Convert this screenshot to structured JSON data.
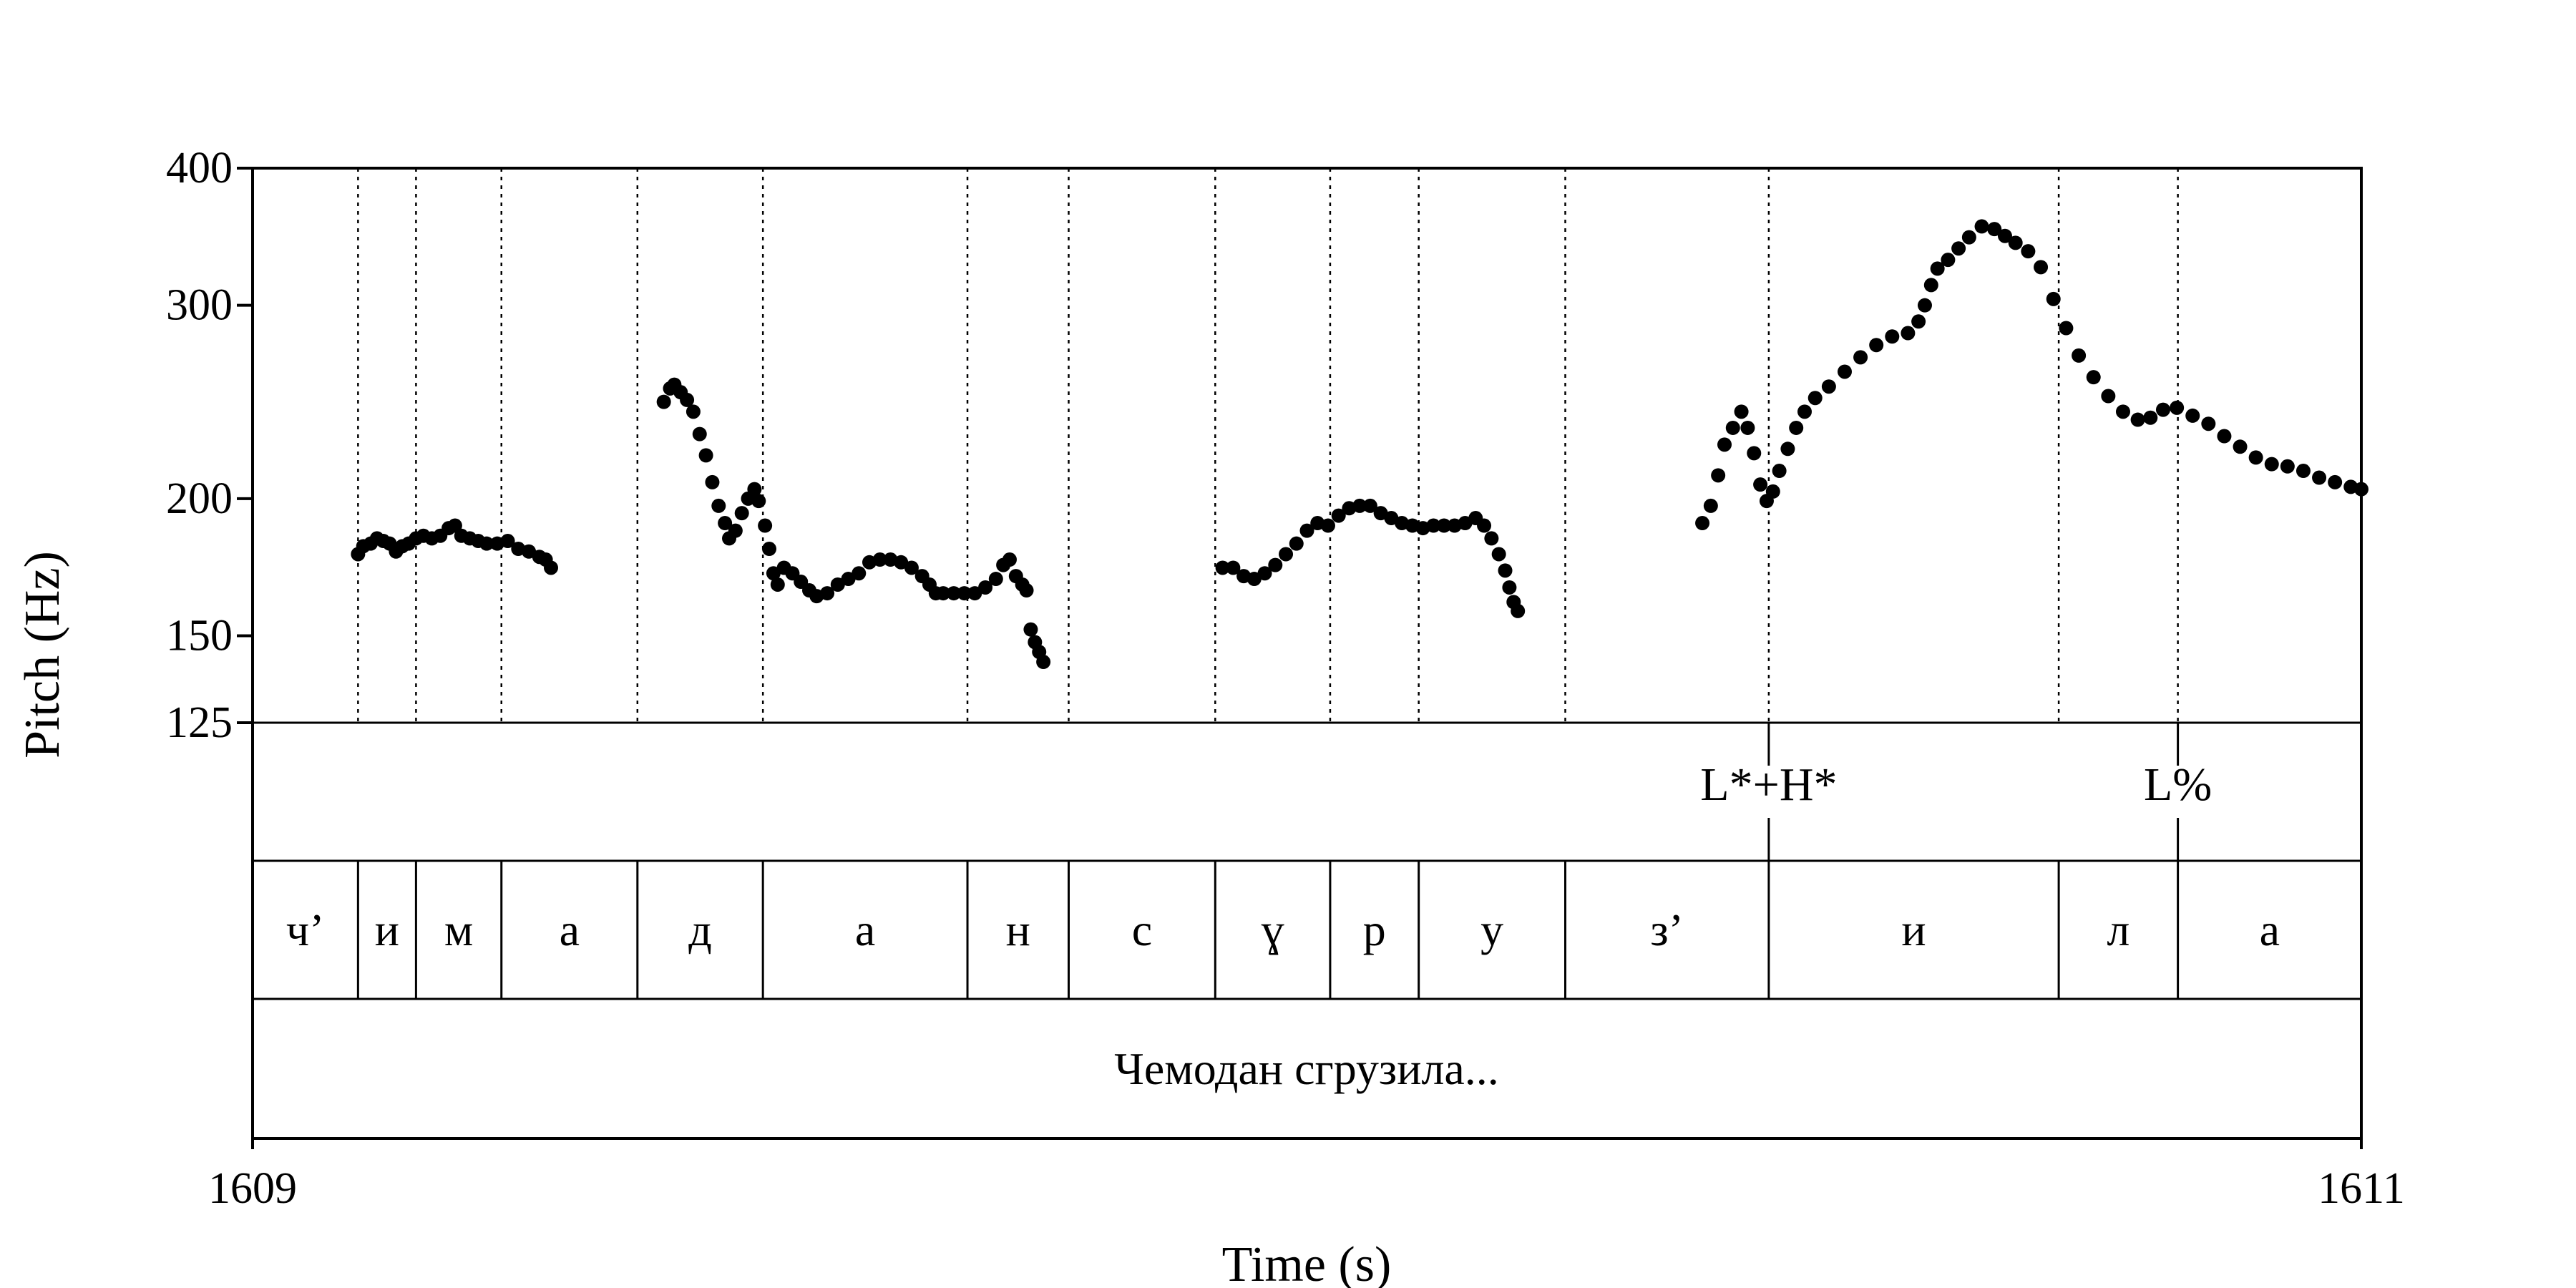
{
  "chart_data": {
    "type": "scatter",
    "xlabel": "Time (s)",
    "ylabel": "Pitch (Hz)",
    "xlim": [
      1609,
      1611
    ],
    "ylim": [
      125,
      400
    ],
    "yscale": "log",
    "xticks": [
      "1609",
      "1611"
    ],
    "yticks": [
      {
        "value": 125,
        "label": "125"
      },
      {
        "value": 150,
        "label": "150"
      },
      {
        "value": 200,
        "label": "200"
      },
      {
        "value": 300,
        "label": "300"
      },
      {
        "value": 400,
        "label": "400"
      }
    ],
    "series": [
      {
        "points": [
          [
            1609.1,
            178
          ],
          [
            1609.105,
            181
          ],
          [
            1609.112,
            182
          ],
          [
            1609.118,
            184
          ],
          [
            1609.124,
            183
          ],
          [
            1609.13,
            182
          ],
          [
            1609.136,
            179
          ],
          [
            1609.142,
            181
          ],
          [
            1609.148,
            182
          ],
          [
            1609.155,
            184
          ],
          [
            1609.162,
            185
          ],
          [
            1609.17,
            184
          ],
          [
            1609.178,
            185
          ],
          [
            1609.186,
            188
          ],
          [
            1609.192,
            189
          ],
          [
            1609.198,
            185
          ],
          [
            1609.206,
            184
          ],
          [
            1609.214,
            183
          ],
          [
            1609.222,
            182
          ],
          [
            1609.232,
            182
          ],
          [
            1609.242,
            183
          ],
          [
            1609.252,
            180
          ],
          [
            1609.262,
            179
          ],
          [
            1609.272,
            177
          ],
          [
            1609.278,
            176
          ],
          [
            1609.283,
            173
          ],
          [
            1609.39,
            245
          ],
          [
            1609.396,
            252
          ],
          [
            1609.4,
            254
          ],
          [
            1609.406,
            250
          ],
          [
            1609.412,
            246
          ],
          [
            1609.418,
            240
          ],
          [
            1609.424,
            229
          ],
          [
            1609.43,
            219
          ],
          [
            1609.436,
            207
          ],
          [
            1609.442,
            197
          ],
          [
            1609.448,
            190
          ],
          [
            1609.452,
            184
          ],
          [
            1609.458,
            187
          ],
          [
            1609.464,
            194
          ],
          [
            1609.47,
            200
          ],
          [
            1609.476,
            204
          ],
          [
            1609.48,
            199
          ],
          [
            1609.486,
            189
          ],
          [
            1609.49,
            180
          ],
          [
            1609.494,
            171
          ],
          [
            1609.498,
            167
          ],
          [
            1609.504,
            173
          ],
          [
            1609.512,
            171
          ],
          [
            1609.52,
            168
          ],
          [
            1609.528,
            165
          ],
          [
            1609.535,
            163
          ],
          [
            1609.545,
            164
          ],
          [
            1609.555,
            167
          ],
          [
            1609.565,
            169
          ],
          [
            1609.575,
            171
          ],
          [
            1609.585,
            175
          ],
          [
            1609.595,
            176
          ],
          [
            1609.605,
            176
          ],
          [
            1609.615,
            175
          ],
          [
            1609.625,
            173
          ],
          [
            1609.635,
            170
          ],
          [
            1609.642,
            167
          ],
          [
            1609.648,
            164
          ],
          [
            1609.655,
            164
          ],
          [
            1609.665,
            164
          ],
          [
            1609.675,
            164
          ],
          [
            1609.685,
            164
          ],
          [
            1609.695,
            166
          ],
          [
            1609.705,
            169
          ],
          [
            1609.712,
            174
          ],
          [
            1609.718,
            176
          ],
          [
            1609.724,
            170
          ],
          [
            1609.73,
            167
          ],
          [
            1609.734,
            165
          ],
          [
            1609.738,
            152
          ],
          [
            1609.742,
            148
          ],
          [
            1609.746,
            145
          ],
          [
            1609.75,
            142
          ],
          [
            1609.92,
            173
          ],
          [
            1609.93,
            173
          ],
          [
            1609.94,
            170
          ],
          [
            1609.95,
            169
          ],
          [
            1609.96,
            171
          ],
          [
            1609.97,
            174
          ],
          [
            1609.98,
            178
          ],
          [
            1609.99,
            182
          ],
          [
            1610.0,
            187
          ],
          [
            1610.01,
            190
          ],
          [
            1610.02,
            189
          ],
          [
            1610.03,
            193
          ],
          [
            1610.04,
            196
          ],
          [
            1610.05,
            197
          ],
          [
            1610.06,
            197
          ],
          [
            1610.07,
            194
          ],
          [
            1610.08,
            192
          ],
          [
            1610.09,
            190
          ],
          [
            1610.1,
            189
          ],
          [
            1610.11,
            188
          ],
          [
            1610.12,
            189
          ],
          [
            1610.13,
            189
          ],
          [
            1610.14,
            189
          ],
          [
            1610.15,
            190
          ],
          [
            1610.16,
            192
          ],
          [
            1610.168,
            189
          ],
          [
            1610.175,
            184
          ],
          [
            1610.182,
            178
          ],
          [
            1610.188,
            172
          ],
          [
            1610.192,
            166
          ],
          [
            1610.196,
            161
          ],
          [
            1610.2,
            158
          ],
          [
            1610.375,
            190
          ],
          [
            1610.383,
            197
          ],
          [
            1610.39,
            210
          ],
          [
            1610.396,
            224
          ],
          [
            1610.404,
            232
          ],
          [
            1610.412,
            240
          ],
          [
            1610.418,
            232
          ],
          [
            1610.424,
            220
          ],
          [
            1610.43,
            206
          ],
          [
            1610.436,
            199
          ],
          [
            1610.442,
            203
          ],
          [
            1610.448,
            212
          ],
          [
            1610.456,
            222
          ],
          [
            1610.464,
            232
          ],
          [
            1610.472,
            240
          ],
          [
            1610.482,
            247
          ],
          [
            1610.495,
            253
          ],
          [
            1610.51,
            261
          ],
          [
            1610.525,
            269
          ],
          [
            1610.54,
            276
          ],
          [
            1610.555,
            281
          ],
          [
            1610.57,
            283
          ],
          [
            1610.58,
            290
          ],
          [
            1610.586,
            300
          ],
          [
            1610.592,
            313
          ],
          [
            1610.598,
            324
          ],
          [
            1610.608,
            330
          ],
          [
            1610.618,
            338
          ],
          [
            1610.628,
            346
          ],
          [
            1610.64,
            354
          ],
          [
            1610.652,
            352
          ],
          [
            1610.662,
            347
          ],
          [
            1610.672,
            342
          ],
          [
            1610.684,
            336
          ],
          [
            1610.696,
            325
          ],
          [
            1610.708,
            304
          ],
          [
            1610.72,
            286
          ],
          [
            1610.732,
            270
          ],
          [
            1610.746,
            258
          ],
          [
            1610.76,
            248
          ],
          [
            1610.774,
            240
          ],
          [
            1610.788,
            236
          ],
          [
            1610.8,
            237
          ],
          [
            1610.812,
            241
          ],
          [
            1610.825,
            242
          ],
          [
            1610.84,
            238
          ],
          [
            1610.855,
            234
          ],
          [
            1610.87,
            228
          ],
          [
            1610.885,
            223
          ],
          [
            1610.9,
            218
          ],
          [
            1610.915,
            215
          ],
          [
            1610.93,
            214
          ],
          [
            1610.945,
            212
          ],
          [
            1610.96,
            209
          ],
          [
            1610.975,
            207
          ],
          [
            1610.99,
            205
          ],
          [
            1611.0,
            204
          ]
        ]
      }
    ],
    "boundaries": [
      1609.1,
      1609.155,
      1609.236,
      1609.365,
      1609.484,
      1609.678,
      1609.774,
      1609.913,
      1610.022,
      1610.106,
      1610.245,
      1610.438,
      1610.713,
      1610.826
    ],
    "segments": [
      {
        "label": "ч’",
        "start": 1609.0,
        "end": 1609.1
      },
      {
        "label": "и",
        "start": 1609.1,
        "end": 1609.155
      },
      {
        "label": "м",
        "start": 1609.155,
        "end": 1609.236
      },
      {
        "label": "а",
        "start": 1609.236,
        "end": 1609.365
      },
      {
        "label": "д",
        "start": 1609.365,
        "end": 1609.484
      },
      {
        "label": "а",
        "start": 1609.484,
        "end": 1609.678
      },
      {
        "label": "н",
        "start": 1609.678,
        "end": 1609.774
      },
      {
        "label": "с",
        "start": 1609.774,
        "end": 1609.913
      },
      {
        "label": "ɣ",
        "start": 1609.913,
        "end": 1610.022
      },
      {
        "label": "р",
        "start": 1610.022,
        "end": 1610.106
      },
      {
        "label": "у",
        "start": 1610.106,
        "end": 1610.245
      },
      {
        "label": "з’",
        "start": 1610.245,
        "end": 1610.438
      },
      {
        "label": "и",
        "start": 1610.438,
        "end": 1610.713
      },
      {
        "label": "л",
        "start": 1610.713,
        "end": 1610.826
      },
      {
        "label": "а",
        "start": 1610.826,
        "end": 1611.0
      }
    ],
    "tones": [
      {
        "label": "L*+H*",
        "time": 1610.438
      },
      {
        "label": "L%",
        "time": 1610.826
      }
    ],
    "utterance": "Чемодан сгрузила..."
  }
}
